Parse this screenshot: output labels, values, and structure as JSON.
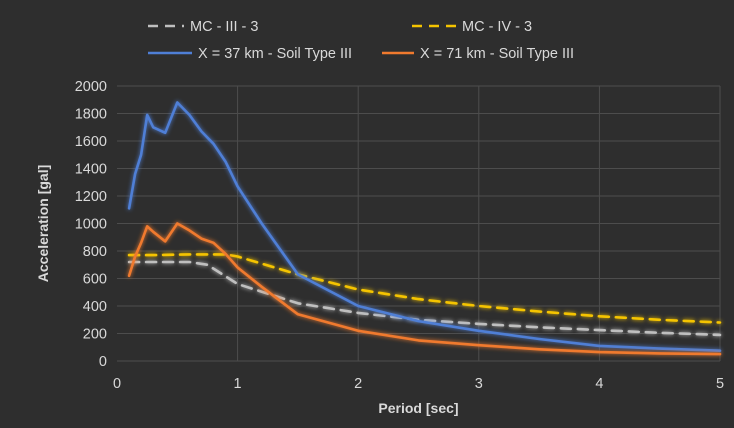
{
  "chart_data": {
    "type": "line",
    "title": "",
    "xlabel": "Period [sec]",
    "ylabel": "Acceleration [gal]",
    "xlim": [
      0,
      5
    ],
    "ylim": [
      0,
      2000
    ],
    "xticks": [
      "0",
      "1",
      "2",
      "3",
      "4",
      "5"
    ],
    "yticks": [
      "0",
      "200",
      "400",
      "600",
      "800",
      "1000",
      "1200",
      "1400",
      "1600",
      "1800",
      "2000"
    ],
    "grid": true,
    "legend_position": "top",
    "series": [
      {
        "name": "MC - III - 3",
        "color": "#bfbfbf",
        "style": "dashed",
        "x": [
          0.1,
          0.3,
          0.6,
          0.75,
          1.0,
          1.5,
          2.0,
          2.5,
          3.0,
          3.5,
          4.0,
          4.5,
          5.0
        ],
        "y": [
          720,
          720,
          720,
          700,
          560,
          420,
          350,
          300,
          270,
          245,
          225,
          205,
          190
        ]
      },
      {
        "name": "MC - IV - 3",
        "color": "#f5c400",
        "style": "dashed",
        "x": [
          0.1,
          0.3,
          0.6,
          0.9,
          1.0,
          1.5,
          2.0,
          2.5,
          3.0,
          3.5,
          4.0,
          4.5,
          5.0
        ],
        "y": [
          770,
          770,
          775,
          775,
          760,
          630,
          520,
          450,
          400,
          360,
          325,
          300,
          280
        ]
      },
      {
        "name": "X = 37 km - Soil Type III",
        "color": "#4f7fd6",
        "style": "solid",
        "x": [
          0.1,
          0.15,
          0.2,
          0.25,
          0.3,
          0.4,
          0.5,
          0.6,
          0.7,
          0.8,
          0.9,
          1.0,
          1.2,
          1.5,
          2.0,
          2.5,
          3.0,
          3.5,
          4.0,
          4.5,
          5.0
        ],
        "y": [
          1110,
          1360,
          1500,
          1790,
          1700,
          1660,
          1880,
          1790,
          1670,
          1580,
          1450,
          1270,
          1000,
          630,
          400,
          290,
          220,
          160,
          110,
          90,
          75
        ]
      },
      {
        "name": "X = 71 km - Soil Type III",
        "color": "#f07a2e",
        "style": "solid",
        "x": [
          0.1,
          0.15,
          0.2,
          0.25,
          0.3,
          0.4,
          0.5,
          0.6,
          0.7,
          0.8,
          0.9,
          1.0,
          1.2,
          1.5,
          2.0,
          2.5,
          3.0,
          3.5,
          4.0,
          4.5,
          5.0
        ],
        "y": [
          620,
          760,
          860,
          980,
          940,
          870,
          1000,
          950,
          890,
          860,
          780,
          680,
          540,
          340,
          220,
          150,
          115,
          85,
          65,
          55,
          50
        ]
      }
    ]
  }
}
